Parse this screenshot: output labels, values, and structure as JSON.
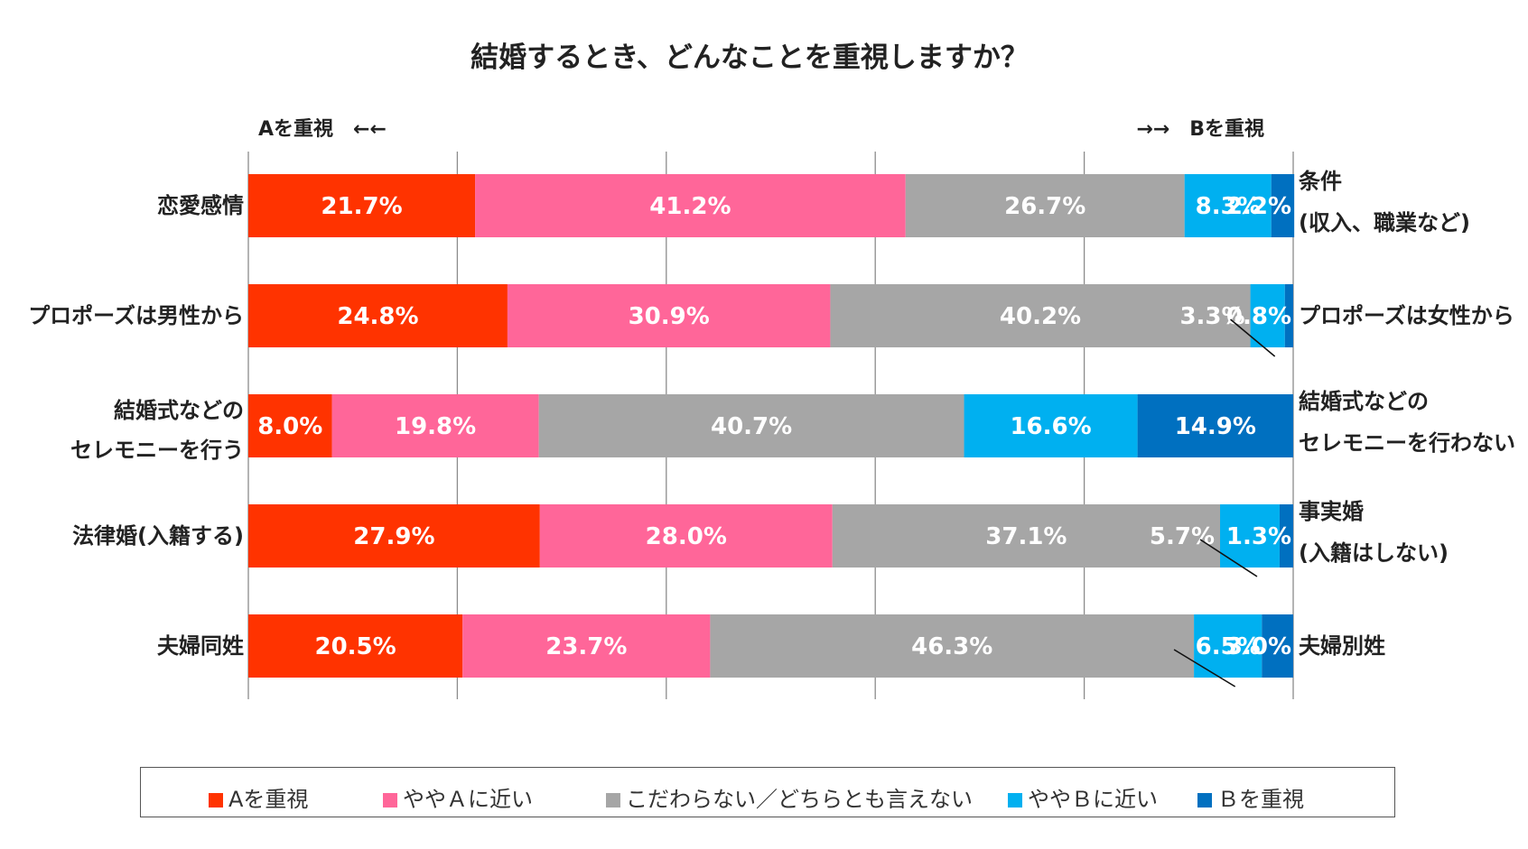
{
  "chart_data": {
    "type": "bar",
    "orientation": "horizontal-stacked-100",
    "title": "結婚するとき、どんなことを重視しますか？",
    "left_header": "Aを重視　←←",
    "right_header": "→→　Bを重視",
    "series": [
      {
        "name": "Aを重視",
        "color": "#ff3300"
      },
      {
        "name": "ややＡに近い",
        "color": "#ff6699"
      },
      {
        "name": "こだわらない／どちらとも言えない",
        "color": "#a6a6a6"
      },
      {
        "name": "ややＢに近い",
        "color": "#00b0f0"
      },
      {
        "name": "Ｂを重視",
        "color": "#0070c0"
      }
    ],
    "rows": [
      {
        "left_label": [
          "恋愛感情"
        ],
        "right_label": [
          "条件",
          "(収入、職業など)"
        ],
        "values": [
          21.7,
          41.2,
          26.7,
          8.3,
          2.2
        ],
        "labels": [
          "21.7%",
          "41.2%",
          "26.7%",
          "8.3%",
          "2.2%"
        ]
      },
      {
        "left_label": [
          "プロポーズは男性から"
        ],
        "right_label": [
          "プロポーズは女性から"
        ],
        "values": [
          24.8,
          30.9,
          40.2,
          3.3,
          0.8
        ],
        "labels": [
          "24.8%",
          "30.9%",
          "40.2%",
          "3.3%",
          "0.8%"
        ]
      },
      {
        "left_label": [
          "結婚式などの",
          "セレモニーを行う"
        ],
        "right_label": [
          "結婚式などの",
          "セレモニーを行わない"
        ],
        "values": [
          8.0,
          19.8,
          40.7,
          16.6,
          14.9
        ],
        "labels": [
          "8.0%",
          "19.8%",
          "40.7%",
          "16.6%",
          "14.9%"
        ]
      },
      {
        "left_label": [
          "法律婚(入籍する)"
        ],
        "right_label": [
          "事実婚",
          "(入籍はしない)"
        ],
        "values": [
          27.9,
          28.0,
          37.1,
          5.7,
          1.3
        ],
        "labels": [
          "27.9%",
          "28.0%",
          "37.1%",
          "5.7%",
          "1.3%"
        ]
      },
      {
        "left_label": [
          "夫婦同姓"
        ],
        "right_label": [
          "夫婦別姓"
        ],
        "values": [
          20.5,
          23.7,
          46.3,
          6.5,
          3.0
        ],
        "labels": [
          "20.5%",
          "23.7%",
          "46.3%",
          "6.5%",
          "3.0%"
        ]
      }
    ],
    "xlim": [
      0,
      100
    ],
    "gridlines": [
      0,
      20,
      40,
      60,
      80,
      100
    ],
    "legend_position": "bottom"
  }
}
